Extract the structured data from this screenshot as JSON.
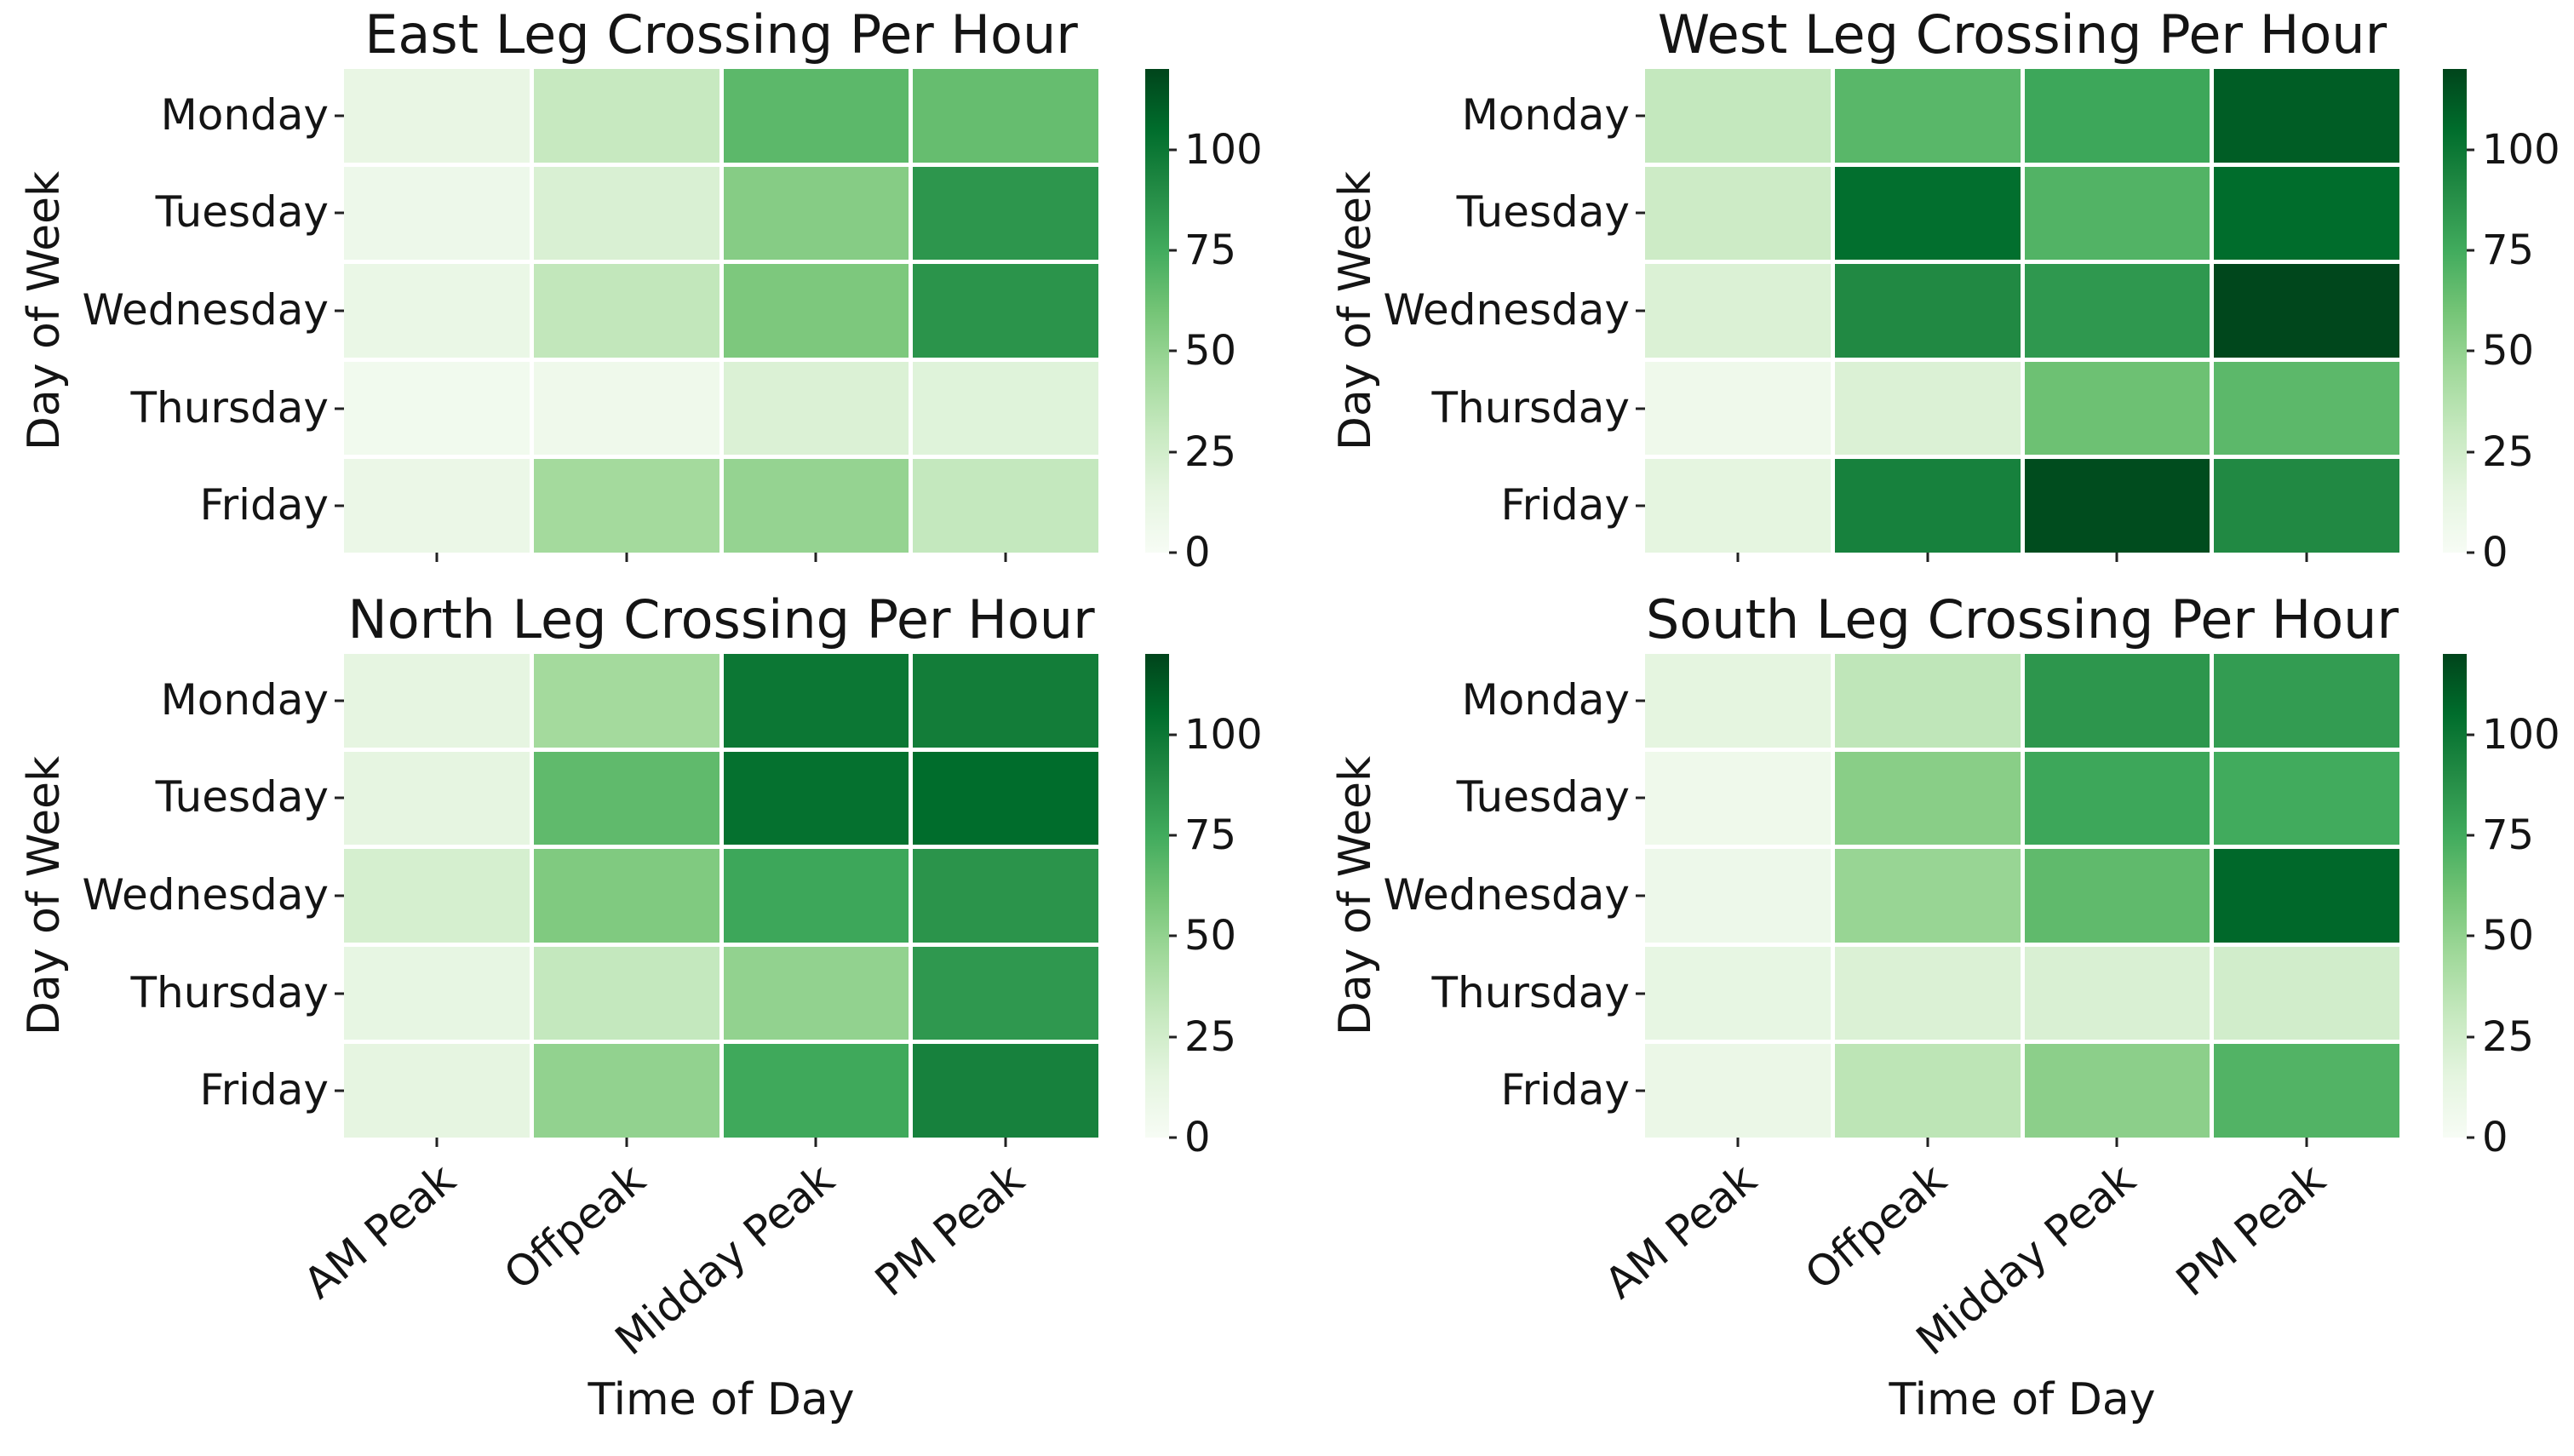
{
  "page": {
    "background": "#ffffff"
  },
  "colormap": {
    "name": "Greens",
    "stops": [
      "#f7fcf5",
      "#e5f5e0",
      "#c7e9c0",
      "#a1d99b",
      "#74c476",
      "#41ab5d",
      "#238b45",
      "#006d2c",
      "#00441b"
    ]
  },
  "chart_data": [
    {
      "type": "heatmap",
      "position": "top-left",
      "title": "East Leg Crossing Per Hour",
      "ylabel": "Day of Week",
      "xlabel": "",
      "x_categories": [
        "AM Peak",
        "Offpeak",
        "Midday Peak",
        "PM Peak"
      ],
      "y_categories": [
        "Monday",
        "Tuesday",
        "Wednesday",
        "Thursday",
        "Friday"
      ],
      "vmin": 0,
      "vmax": 120,
      "colorbar_ticks": [
        0,
        25,
        50,
        75,
        100
      ],
      "show_x_tick_labels": false,
      "values": [
        [
          12,
          30,
          67,
          64
        ],
        [
          8,
          21,
          54,
          85
        ],
        [
          11,
          32,
          57,
          86
        ],
        [
          5,
          7,
          20,
          18
        ],
        [
          10,
          44,
          49,
          31
        ]
      ]
    },
    {
      "type": "heatmap",
      "position": "top-right",
      "title": "West Leg Crossing Per Hour",
      "ylabel": "Day of Week",
      "xlabel": "",
      "x_categories": [
        "AM Peak",
        "Offpeak",
        "Midday Peak",
        "PM Peak"
      ],
      "y_categories": [
        "Monday",
        "Tuesday",
        "Wednesday",
        "Thursday",
        "Friday"
      ],
      "vmin": 0,
      "vmax": 120,
      "colorbar_ticks": [
        0,
        25,
        50,
        75,
        100
      ],
      "show_x_tick_labels": false,
      "values": [
        [
          31,
          68,
          77,
          111
        ],
        [
          27,
          104,
          70,
          105
        ],
        [
          20,
          91,
          84,
          119
        ],
        [
          7,
          20,
          62,
          67
        ],
        [
          15,
          95,
          117,
          91
        ]
      ]
    },
    {
      "type": "heatmap",
      "position": "bottom-left",
      "title": "North Leg Crossing Per Hour",
      "ylabel": "Day of Week",
      "xlabel": "Time of Day",
      "x_categories": [
        "AM Peak",
        "Offpeak",
        "Midday Peak",
        "PM Peak"
      ],
      "y_categories": [
        "Monday",
        "Tuesday",
        "Wednesday",
        "Thursday",
        "Friday"
      ],
      "vmin": 0,
      "vmax": 120,
      "colorbar_ticks": [
        0,
        25,
        50,
        75,
        100
      ],
      "show_x_tick_labels": true,
      "values": [
        [
          14,
          44,
          100,
          97
        ],
        [
          14,
          66,
          103,
          105
        ],
        [
          23,
          56,
          77,
          86
        ],
        [
          13,
          31,
          50,
          84
        ],
        [
          14,
          50,
          76,
          95
        ]
      ]
    },
    {
      "type": "heatmap",
      "position": "bottom-right",
      "title": "South Leg Crossing Per Hour",
      "ylabel": "Day of Week",
      "xlabel": "Time of Day",
      "x_categories": [
        "AM Peak",
        "Offpeak",
        "Midday Peak",
        "PM Peak"
      ],
      "y_categories": [
        "Monday",
        "Tuesday",
        "Wednesday",
        "Thursday",
        "Friday"
      ],
      "vmin": 0,
      "vmax": 120,
      "colorbar_ticks": [
        0,
        25,
        50,
        75,
        100
      ],
      "show_x_tick_labels": true,
      "values": [
        [
          15,
          33,
          85,
          82
        ],
        [
          7,
          53,
          77,
          75
        ],
        [
          8,
          48,
          66,
          107
        ],
        [
          13,
          20,
          21,
          25
        ],
        [
          10,
          34,
          52,
          70
        ]
      ]
    }
  ]
}
